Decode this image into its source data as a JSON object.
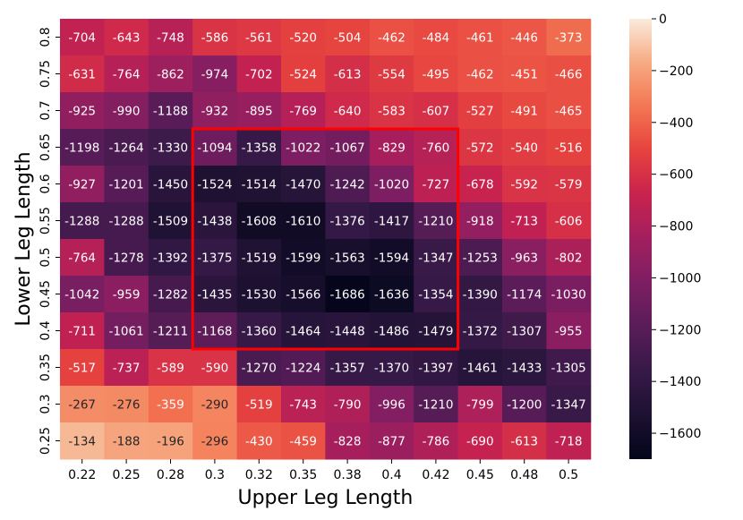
{
  "chart_data": {
    "type": "heatmap",
    "xlabel": "Upper Leg Length",
    "ylabel": "Lower Leg Length",
    "x_categories": [
      "0.22",
      "0.25",
      "0.28",
      "0.3",
      "0.32",
      "0.35",
      "0.38",
      "0.4",
      "0.42",
      "0.45",
      "0.48",
      "0.5"
    ],
    "y_categories": [
      "0.8",
      "0.75",
      "0.7",
      "0.65",
      "0.6",
      "0.55",
      "0.5",
      "0.45",
      "0.4",
      "0.35",
      "0.3",
      "0.25"
    ],
    "values": [
      [
        -704,
        -643,
        -748,
        -586,
        -561,
        -520,
        -504,
        -462,
        -484,
        -461,
        -446,
        -373
      ],
      [
        -631,
        -764,
        -862,
        -974,
        -702,
        -524,
        -613,
        -554,
        -495,
        -462,
        -451,
        -466
      ],
      [
        -925,
        -990,
        -1188,
        -932,
        -895,
        -769,
        -640,
        -583,
        -607,
        -527,
        -491,
        -465
      ],
      [
        -1198,
        -1264,
        -1330,
        -1094,
        -1358,
        -1022,
        -1067,
        -829,
        -760,
        -572,
        -540,
        -516
      ],
      [
        -927,
        -1201,
        -1450,
        -1524,
        -1514,
        -1470,
        -1242,
        -1020,
        -727,
        -678,
        -592,
        -579
      ],
      [
        -1288,
        -1288,
        -1509,
        -1438,
        -1608,
        -1610,
        -1376,
        -1417,
        -1210,
        -918,
        -713,
        -606
      ],
      [
        -764,
        -1278,
        -1392,
        -1375,
        -1519,
        -1599,
        -1563,
        -1594,
        -1347,
        -1253,
        -963,
        -802
      ],
      [
        -1042,
        -959,
        -1282,
        -1435,
        -1530,
        -1566,
        -1686,
        -1636,
        -1354,
        -1390,
        -1174,
        -1030
      ],
      [
        -711,
        -1061,
        -1211,
        -1168,
        -1360,
        -1464,
        -1448,
        -1486,
        -1479,
        -1372,
        -1307,
        -955
      ],
      [
        -517,
        -737,
        -589,
        -590,
        -1270,
        -1224,
        -1357,
        -1370,
        -1397,
        -1461,
        -1433,
        -1305
      ],
      [
        -267,
        -276,
        -359,
        -290,
        -519,
        -743,
        -790,
        -996,
        -1210,
        -799,
        -1200,
        -1347
      ],
      [
        -134,
        -188,
        -196,
        -296,
        -430,
        -459,
        -828,
        -877,
        -786,
        -690,
        -613,
        -718
      ]
    ],
    "colorbar": {
      "min": -1700,
      "max": 0,
      "ticks": [
        0,
        -200,
        -400,
        -600,
        -800,
        -1000,
        -1200,
        -1400,
        -1600
      ],
      "tick_labels": [
        "0",
        "−200",
        "−400",
        "−600",
        "−800",
        "−1000",
        "−1200",
        "−1400",
        "−1600"
      ],
      "colormap": "rocket"
    },
    "highlight_region": {
      "x_from": "0.3",
      "x_to": "0.42",
      "y_from": "0.65",
      "y_to": "0.4",
      "color": "#ff0000"
    }
  }
}
